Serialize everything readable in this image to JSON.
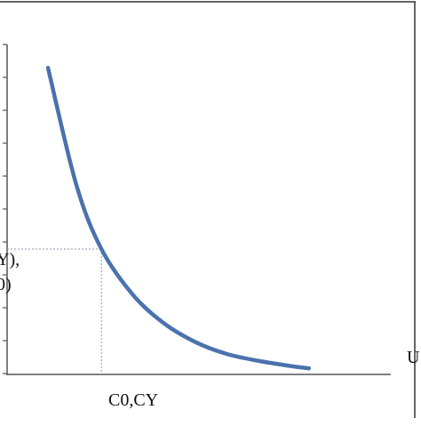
{
  "chart_data": {
    "type": "line",
    "title": "",
    "xlabel": "U",
    "ylabel": "",
    "x_tick_labels": [],
    "y_tick_labels": [],
    "y_annotation_lines": [
      "Y),",
      "0)"
    ],
    "reference_point_label": "C0,CY",
    "xlim": [
      0,
      1
    ],
    "ylim": [
      0,
      1
    ],
    "grid": false,
    "series": [
      {
        "color": "#4a72ad",
        "x": [
          0.13,
          0.22,
          0.3,
          0.4,
          0.5,
          0.6,
          0.7,
          0.8,
          0.9,
          0.96
        ],
        "y": [
          0.905,
          0.56,
          0.37,
          0.235,
          0.15,
          0.095,
          0.06,
          0.04,
          0.025,
          0.018
        ]
      }
    ],
    "reference_point": {
      "x": 0.3,
      "y": 0.37
    }
  }
}
